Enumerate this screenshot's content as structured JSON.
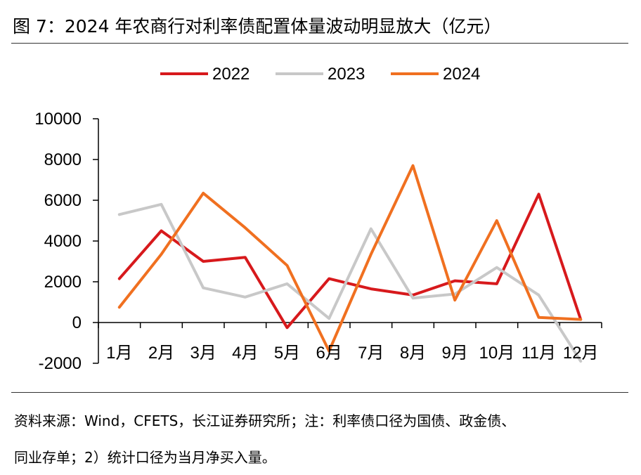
{
  "figure": {
    "title": "图 7：2024 年农商行对利率债配置体量波动明显放大（亿元）",
    "source_line1": "资料来源：Wind，CFETS，长江证券研究所；注：利率债口径为国债、政金债、",
    "source_line2": "同业存单；2）统计口径为当月净买入量。"
  },
  "chart_data": {
    "type": "line",
    "title": "2024 年农商行对利率债配置体量波动明显放大（亿元）",
    "categories": [
      "1月",
      "2月",
      "3月",
      "4月",
      "5月",
      "6月",
      "7月",
      "8月",
      "9月",
      "10月",
      "11月",
      "12月"
    ],
    "yticks": [
      "10000",
      "8000",
      "6000",
      "4000",
      "2000",
      "0",
      "-2000"
    ],
    "ylim": [
      -2000,
      10000
    ],
    "grid": false,
    "legend_position": "top",
    "series": [
      {
        "name": "2022",
        "color": "#d7191c",
        "values": [
          2150,
          4500,
          3000,
          3200,
          -250,
          2150,
          1650,
          1350,
          2050,
          1900,
          6300,
          150
        ]
      },
      {
        "name": "2023",
        "color": "#c8c8c8",
        "values": [
          5300,
          5800,
          1700,
          1250,
          1900,
          200,
          4600,
          1200,
          1400,
          2700,
          1350,
          -1900
        ]
      },
      {
        "name": "2024",
        "color": "#f07020",
        "values": [
          750,
          3350,
          6350,
          4650,
          2800,
          -1400,
          3350,
          7700,
          1100,
          5000,
          250,
          150
        ]
      }
    ]
  }
}
